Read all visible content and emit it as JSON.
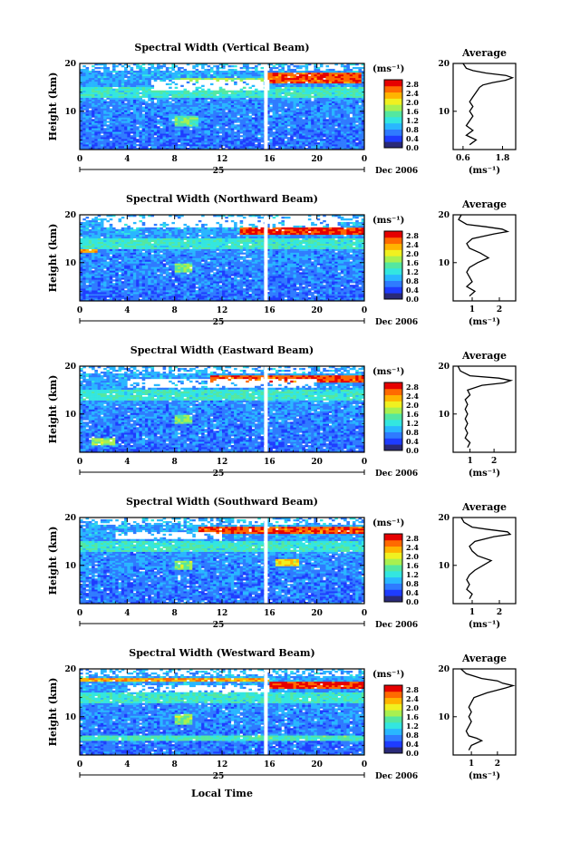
{
  "figure": {
    "x_axis_label": "Local Time",
    "day_label": "25",
    "month_year_label": "Dec 2006"
  },
  "colorbar": {
    "unit": "(ms⁻¹)",
    "ticks": [
      "2.8",
      "2.4",
      "2.0",
      "1.6",
      "1.2",
      "0.8",
      "0.4",
      "0.0"
    ],
    "colors": [
      "#2a2a78",
      "#1e3cff",
      "#2f7bff",
      "#29b7ff",
      "#33e6e0",
      "#54e7a0",
      "#a8f050",
      "#f0f020",
      "#ffb400",
      "#ff6a00",
      "#e60000"
    ]
  },
  "chart_data": [
    {
      "type": "heatmap",
      "title": "Spectral Width (Vertical Beam)",
      "xlabel": "Local Time",
      "ylabel": "Height (km)",
      "x_ticks": [
        "0",
        "4",
        "8",
        "12",
        "16",
        "20",
        "0"
      ],
      "y_ticks": [
        "20",
        "10"
      ],
      "xlim": [
        0,
        24
      ],
      "ylim": [
        2,
        20
      ],
      "zlim": [
        0.0,
        2.8
      ],
      "gap_hour": 15.7,
      "layers": [
        {
          "y": [
            16.0,
            18.0
          ],
          "value": 2.6,
          "t0": 15.7,
          "t1": 23.8
        },
        {
          "y": [
            16.3,
            17.0
          ],
          "value": 1.6,
          "t0": 8,
          "t1": 15.5
        },
        {
          "y": [
            13.0,
            15.0
          ],
          "value": 1.2,
          "t0": 0,
          "t1": 24
        },
        {
          "y": [
            7.0,
            9.0
          ],
          "value": 1.4,
          "t0": 8,
          "t1": 10
        }
      ],
      "gaps": [
        {
          "y": [
            14.5,
            16.5
          ],
          "t0": 6,
          "t1": 16
        }
      ],
      "average": {
        "title": "Average",
        "unit_label": "(ms⁻¹)",
        "x_ticks": [
          "0.6",
          "1.8"
        ],
        "xlim": [
          0.3,
          2.2
        ],
        "y_ticks": [
          "20",
          "10"
        ],
        "height": [
          3,
          4,
          5,
          6,
          7,
          8,
          9,
          10,
          11,
          12,
          13,
          14,
          15,
          15.5,
          16,
          16.5,
          17,
          17.5,
          18,
          18.5,
          19,
          20
        ],
        "value": [
          0.8,
          1.0,
          0.7,
          0.9,
          0.7,
          0.8,
          0.9,
          0.8,
          0.9,
          0.8,
          0.9,
          1.0,
          1.1,
          1.2,
          1.5,
          1.9,
          2.1,
          1.9,
          1.3,
          0.9,
          0.7,
          0.6
        ]
      }
    },
    {
      "type": "heatmap",
      "title": "Spectral Width (Northward Beam)",
      "xlabel": "Local Time",
      "ylabel": "Height (km)",
      "x_ticks": [
        "0",
        "4",
        "8",
        "12",
        "16",
        "20",
        "0"
      ],
      "y_ticks": [
        "20",
        "10"
      ],
      "xlim": [
        0,
        24
      ],
      "ylim": [
        2,
        20
      ],
      "zlim": [
        0.0,
        2.8
      ],
      "gap_hour": 15.7,
      "layers": [
        {
          "y": [
            16.0,
            17.2
          ],
          "value": 2.7,
          "t0": 13.5,
          "t1": 24
        },
        {
          "y": [
            12.0,
            13.5
          ],
          "value": 2.3,
          "t0": 0,
          "t1": 1.5
        },
        {
          "y": [
            13.0,
            15.0
          ],
          "value": 1.2,
          "t0": 0,
          "t1": 24
        },
        {
          "y": [
            8.0,
            10.0
          ],
          "value": 1.5,
          "t0": 8,
          "t1": 9.5
        }
      ],
      "gaps": [
        {
          "y": [
            17.5,
            19.5
          ],
          "t0": 2,
          "t1": 22
        }
      ],
      "average": {
        "title": "Average",
        "unit_label": "(ms⁻¹)",
        "x_ticks": [
          "1",
          "2"
        ],
        "xlim": [
          0.3,
          2.6
        ],
        "y_ticks": [
          "20",
          "10"
        ],
        "height": [
          3,
          4,
          5,
          6,
          7,
          8,
          9,
          10,
          11,
          12,
          13,
          14,
          15,
          16,
          16.5,
          17,
          17.5,
          18,
          19,
          20
        ],
        "value": [
          0.9,
          1.1,
          0.8,
          1.0,
          0.9,
          0.8,
          0.9,
          1.2,
          1.6,
          1.3,
          0.9,
          0.8,
          1.0,
          1.8,
          2.3,
          2.1,
          1.5,
          0.8,
          0.5,
          0.6
        ]
      }
    },
    {
      "type": "heatmap",
      "title": "Spectral Width (Eastward Beam)",
      "xlabel": "Local Time",
      "ylabel": "Height (km)",
      "x_ticks": [
        "0",
        "4",
        "8",
        "12",
        "16",
        "20",
        "0"
      ],
      "y_ticks": [
        "20",
        "10"
      ],
      "xlim": [
        0,
        24
      ],
      "ylim": [
        2,
        20
      ],
      "zlim": [
        0.0,
        2.8
      ],
      "gap_hour": 15.7,
      "layers": [
        {
          "y": [
            16.5,
            18.0
          ],
          "value": 2.6,
          "t0": 11,
          "t1": 24
        },
        {
          "y": [
            13.0,
            15.0
          ],
          "value": 1.2,
          "t0": 0,
          "t1": 24
        },
        {
          "y": [
            8.0,
            10.0
          ],
          "value": 1.5,
          "t0": 8,
          "t1": 9.5
        },
        {
          "y": [
            3.5,
            5.0
          ],
          "value": 1.6,
          "t0": 1,
          "t1": 3
        }
      ],
      "gaps": [
        {
          "y": [
            15.5,
            17.5
          ],
          "t0": 4,
          "t1": 20
        }
      ],
      "average": {
        "title": "Average",
        "unit_label": "(ms⁻¹)",
        "x_ticks": [
          "1",
          "2"
        ],
        "xlim": [
          0.3,
          2.9
        ],
        "y_ticks": [
          "20",
          "10"
        ],
        "height": [
          3,
          4,
          5,
          6,
          7,
          8,
          9,
          10,
          11,
          12,
          13,
          14,
          15,
          16,
          16.5,
          17,
          17.5,
          18,
          19,
          20
        ],
        "value": [
          0.9,
          1.0,
          0.8,
          0.9,
          0.8,
          0.9,
          0.8,
          0.9,
          0.8,
          0.9,
          0.8,
          1.0,
          0.9,
          1.5,
          2.4,
          2.7,
          2.2,
          1.0,
          0.6,
          0.5
        ]
      }
    },
    {
      "type": "heatmap",
      "title": "Spectral Width (Southward Beam)",
      "xlabel": "Local Time",
      "ylabel": "Height (km)",
      "x_ticks": [
        "0",
        "4",
        "8",
        "12",
        "16",
        "20",
        "0"
      ],
      "y_ticks": [
        "20",
        "10"
      ],
      "xlim": [
        0,
        24
      ],
      "ylim": [
        2,
        20
      ],
      "zlim": [
        0.0,
        2.8
      ],
      "gap_hour": 15.7,
      "layers": [
        {
          "y": [
            16.5,
            18.0
          ],
          "value": 2.6,
          "t0": 10,
          "t1": 24
        },
        {
          "y": [
            10.0,
            11.5
          ],
          "value": 2.0,
          "t0": 16.5,
          "t1": 18.5
        },
        {
          "y": [
            13.0,
            15.0
          ],
          "value": 1.2,
          "t0": 0,
          "t1": 24
        },
        {
          "y": [
            9.0,
            11.0
          ],
          "value": 1.6,
          "t0": 8,
          "t1": 9.5
        }
      ],
      "gaps": [
        {
          "y": [
            15.5,
            17.0
          ],
          "t0": 3,
          "t1": 12
        }
      ],
      "average": {
        "title": "Average",
        "unit_label": "(ms⁻¹)",
        "x_ticks": [
          "1",
          "2"
        ],
        "xlim": [
          0.3,
          2.6
        ],
        "y_ticks": [
          "20",
          "10"
        ],
        "height": [
          3,
          4,
          5,
          6,
          7,
          8,
          9,
          10,
          11,
          12,
          13,
          14,
          15,
          16,
          16.5,
          17,
          17.5,
          18,
          19,
          20
        ],
        "value": [
          0.9,
          1.0,
          0.8,
          0.9,
          0.8,
          0.9,
          1.1,
          1.4,
          1.7,
          1.2,
          1.0,
          0.9,
          1.1,
          1.8,
          2.4,
          2.3,
          1.6,
          1.0,
          0.7,
          0.6
        ]
      }
    },
    {
      "type": "heatmap",
      "title": "Spectral Width (Westward Beam)",
      "xlabel": "Local Time",
      "ylabel": "Height (km)",
      "x_ticks": [
        "0",
        "4",
        "8",
        "12",
        "16",
        "20",
        "0"
      ],
      "y_ticks": [
        "20",
        "10"
      ],
      "xlim": [
        0,
        24
      ],
      "ylim": [
        2,
        20
      ],
      "zlim": [
        0.0,
        2.8
      ],
      "gap_hour": 15.7,
      "layers": [
        {
          "y": [
            16.0,
            17.5
          ],
          "value": 2.7,
          "t0": 16,
          "t1": 24
        },
        {
          "y": [
            17.5,
            18.3
          ],
          "value": 2.3,
          "t0": 0,
          "t1": 16
        },
        {
          "y": [
            13.0,
            15.0
          ],
          "value": 1.2,
          "t0": 0,
          "t1": 24
        },
        {
          "y": [
            8.5,
            10.5
          ],
          "value": 1.6,
          "t0": 8,
          "t1": 9.5
        },
        {
          "y": [
            5.0,
            6.0
          ],
          "value": 1.3,
          "t0": 0,
          "t1": 24
        }
      ],
      "gaps": [
        {
          "y": [
            15.0,
            16.5
          ],
          "t0": 4,
          "t1": 16
        }
      ],
      "average": {
        "title": "Average",
        "unit_label": "(ms⁻¹)",
        "x_ticks": [
          "1",
          "2"
        ],
        "xlim": [
          0.3,
          2.7
        ],
        "y_ticks": [
          "20",
          "10"
        ],
        "height": [
          3,
          4,
          5,
          5.5,
          6,
          7,
          8,
          9,
          10,
          11,
          12,
          13,
          14,
          15,
          16,
          16.5,
          17,
          17.5,
          18,
          19,
          20
        ],
        "value": [
          0.9,
          1.0,
          1.4,
          1.2,
          0.9,
          0.8,
          0.9,
          1.0,
          0.9,
          1.0,
          0.9,
          1.0,
          1.1,
          1.6,
          2.3,
          2.6,
          2.2,
          2.0,
          1.4,
          0.8,
          0.6
        ]
      }
    }
  ]
}
